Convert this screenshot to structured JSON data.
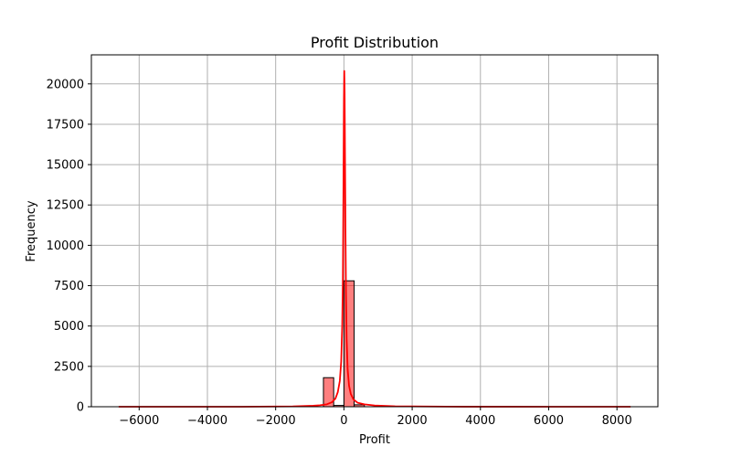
{
  "chart_data": {
    "type": "histogram",
    "title": "Profit Distribution",
    "xlabel": "Profit",
    "ylabel": "Frequency",
    "xlim": [
      -7400,
      9200
    ],
    "ylim": [
      0,
      21800
    ],
    "x_ticks": [
      -6000,
      -4000,
      -2000,
      0,
      2000,
      4000,
      6000,
      8000
    ],
    "x_tick_labels": [
      "−6000",
      "−4000",
      "−2000",
      "0",
      "2000",
      "4000",
      "6000",
      "8000"
    ],
    "y_ticks": [
      0,
      2500,
      5000,
      7500,
      10000,
      12500,
      15000,
      17500,
      20000
    ],
    "y_tick_labels": [
      "0",
      "2500",
      "5000",
      "7500",
      "10000",
      "12500",
      "15000",
      "17500",
      "20000"
    ],
    "grid": true,
    "bar_color": "#ff0000",
    "bar_opacity": 0.5,
    "bar_edge_color": "#000000",
    "kde_color": "#ff0000",
    "bins": [
      {
        "x0": -600,
        "x1": -300,
        "count": 1800
      },
      {
        "x0": -300,
        "x1": 0,
        "count": 80
      },
      {
        "x0": 0,
        "x1": 300,
        "count": 7800
      },
      {
        "x0": 300,
        "x1": 600,
        "count": 120
      }
    ],
    "kde": {
      "x": [
        -6600,
        -3000,
        -1500,
        -900,
        -700,
        -500,
        -350,
        -250,
        -180,
        -120,
        -80,
        -50,
        -30,
        -15,
        0,
        10,
        20,
        30,
        45,
        60,
        80,
        110,
        150,
        200,
        280,
        400,
        600,
        900,
        1500,
        3000,
        6000,
        8400
      ],
      "y": [
        0,
        0,
        20,
        60,
        90,
        150,
        280,
        500,
        900,
        1600,
        2800,
        5000,
        8000,
        13000,
        19000,
        20800,
        19500,
        16000,
        11000,
        7000,
        4200,
        2300,
        1300,
        800,
        450,
        250,
        150,
        80,
        30,
        5,
        0,
        0
      ]
    }
  }
}
